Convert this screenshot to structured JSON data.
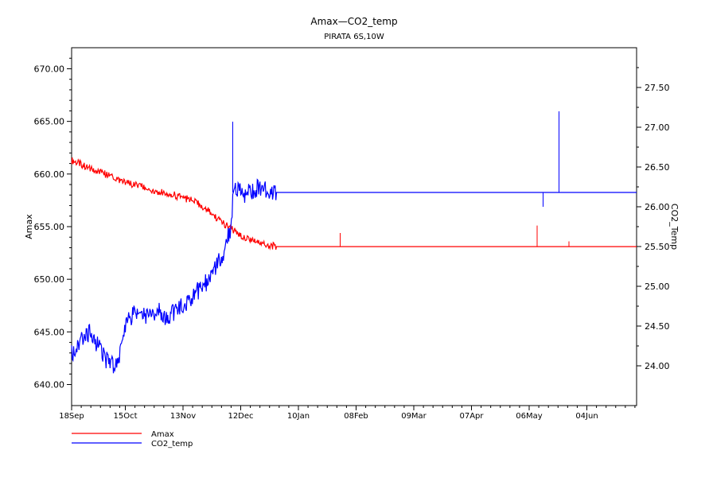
{
  "chart_data": {
    "type": "line",
    "title": "Amax—CO2_temp",
    "subtitle": "PIRATA 6S,10W",
    "x_axis": {
      "ticks": [
        {
          "label": "18Sep",
          "day": 0
        },
        {
          "label": "15Oct",
          "day": 27
        },
        {
          "label": "13Nov",
          "day": 56
        },
        {
          "label": "12Dec",
          "day": 85
        },
        {
          "label": "10Jan",
          "day": 114
        },
        {
          "label": "08Feb",
          "day": 143
        },
        {
          "label": "09Mar",
          "day": 172
        },
        {
          "label": "07Apr",
          "day": 201
        },
        {
          "label": "06May",
          "day": 230
        },
        {
          "label": "04Jun",
          "day": 259
        }
      ],
      "range_days": [
        0,
        284
      ]
    },
    "y_left": {
      "label": "Amax",
      "range": [
        638,
        672
      ],
      "ticks": [
        "640.00",
        "645.00",
        "650.00",
        "655.00",
        "660.00",
        "665.00",
        "670.00"
      ]
    },
    "y_right": {
      "label": "CO2_Temp",
      "range": [
        23.5,
        28.0
      ],
      "ticks": [
        "24.00",
        "24.50",
        "25.00",
        "25.50",
        "26.00",
        "26.50",
        "27.00",
        "27.50"
      ]
    },
    "series": [
      {
        "name": "Amax",
        "axis": "left",
        "color": "#ff0000",
        "points": [
          [
            0,
            661.3
          ],
          [
            5,
            660.9
          ],
          [
            10,
            660.4
          ],
          [
            15,
            660.1
          ],
          [
            20,
            659.8
          ],
          [
            25,
            659.3
          ],
          [
            30,
            659.0
          ],
          [
            35,
            658.8
          ],
          [
            40,
            658.5
          ],
          [
            45,
            658.3
          ],
          [
            50,
            658.1
          ],
          [
            55,
            657.8
          ],
          [
            60,
            657.5
          ],
          [
            65,
            657.0
          ],
          [
            70,
            656.3
          ],
          [
            75,
            655.5
          ],
          [
            80,
            654.8
          ],
          [
            85,
            654.2
          ],
          [
            90,
            653.8
          ],
          [
            95,
            653.5
          ],
          [
            100,
            653.2
          ],
          [
            103,
            653.1
          ],
          [
            110,
            653.1
          ],
          [
            135,
            653.1
          ],
          [
            185,
            653.1
          ],
          [
            240,
            653.1
          ],
          [
            250,
            653.1
          ],
          [
            284,
            653.1
          ]
        ],
        "spikes": [
          {
            "day": 135,
            "value": 654.4
          },
          {
            "day": 234,
            "value": 655.1
          },
          {
            "day": 250,
            "value": 653.6
          }
        ]
      },
      {
        "name": "CO2_temp",
        "axis": "right",
        "color": "#0000ff",
        "points": [
          [
            0,
            24.15
          ],
          [
            3,
            24.25
          ],
          [
            6,
            24.35
          ],
          [
            9,
            24.4
          ],
          [
            12,
            24.3
          ],
          [
            15,
            24.2
          ],
          [
            18,
            24.05
          ],
          [
            20,
            24.0
          ],
          [
            22,
            24.05
          ],
          [
            25,
            24.2
          ],
          [
            27,
            24.45
          ],
          [
            28,
            24.55
          ],
          [
            30,
            24.6
          ],
          [
            33,
            24.7
          ],
          [
            36,
            24.65
          ],
          [
            40,
            24.6
          ],
          [
            44,
            24.7
          ],
          [
            48,
            24.6
          ],
          [
            52,
            24.7
          ],
          [
            56,
            24.75
          ],
          [
            60,
            24.85
          ],
          [
            64,
            24.95
          ],
          [
            68,
            25.05
          ],
          [
            72,
            25.2
          ],
          [
            76,
            25.4
          ],
          [
            78,
            25.55
          ],
          [
            80,
            25.75
          ],
          [
            81,
            26.1
          ],
          [
            83,
            26.25
          ],
          [
            86,
            26.15
          ],
          [
            90,
            26.2
          ],
          [
            94,
            26.25
          ],
          [
            98,
            26.2
          ],
          [
            102,
            26.2
          ],
          [
            103,
            26.18
          ],
          [
            284,
            26.18
          ]
        ],
        "spikes": [
          {
            "day": 81,
            "value": 27.07
          },
          {
            "day": 237,
            "value": 26.0
          },
          {
            "day": 245,
            "value": 27.2
          }
        ]
      }
    ],
    "legend": [
      {
        "name": "Amax",
        "color": "#ff0000"
      },
      {
        "name": "CO2_temp",
        "color": "#0000ff"
      }
    ],
    "legend_position": "bottom-left",
    "grid": false
  }
}
